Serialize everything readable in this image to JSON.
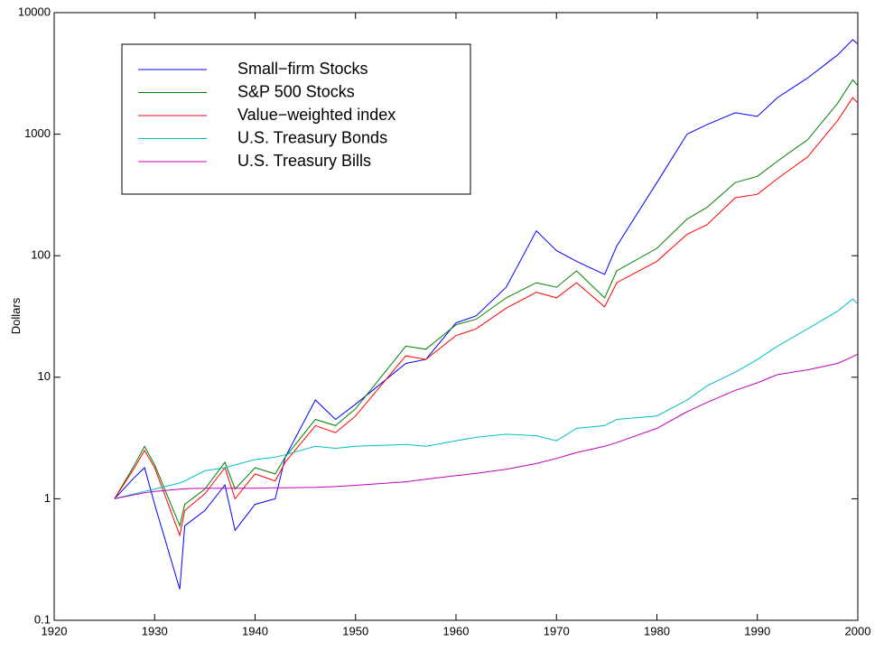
{
  "chart_data": {
    "type": "line",
    "ylabel": "Dollars",
    "yscale": "log",
    "x": [
      1926,
      1928,
      1929,
      1930,
      1932.5,
      1933,
      1935,
      1937,
      1938,
      1940,
      1942,
      1943,
      1946,
      1948,
      1950,
      1955,
      1957,
      1960,
      1962,
      1965,
      1968,
      1970,
      1972,
      1974.8,
      1976,
      1980,
      1983,
      1985,
      1987.8,
      1990,
      1992,
      1995,
      1998,
      1999.5,
      2000
    ],
    "series": [
      {
        "name": "Small−firm Stocks",
        "color": "#0000ff",
        "values": [
          1.0,
          1.5,
          1.8,
          0.9,
          0.18,
          0.6,
          0.8,
          1.3,
          0.55,
          0.9,
          1.0,
          2.2,
          6.5,
          4.5,
          6,
          13,
          14,
          28,
          32,
          55,
          160,
          110,
          90,
          70,
          120,
          400,
          1000,
          1200,
          1500,
          1400,
          2000,
          2900,
          4500,
          6000,
          5500
        ]
      },
      {
        "name": "S&P 500 Stocks",
        "color": "#008000",
        "values": [
          1.0,
          1.9,
          2.7,
          1.9,
          0.6,
          0.9,
          1.2,
          2.0,
          1.2,
          1.8,
          1.6,
          2.2,
          4.5,
          4.0,
          5.5,
          18,
          17,
          27,
          30,
          45,
          60,
          55,
          75,
          45,
          75,
          115,
          200,
          250,
          400,
          450,
          600,
          900,
          1800,
          2800,
          2500
        ]
      },
      {
        "name": "Value−weighted index",
        "color": "#ff0000",
        "values": [
          1.0,
          1.8,
          2.5,
          1.8,
          0.5,
          0.8,
          1.1,
          1.8,
          1.0,
          1.6,
          1.4,
          2.0,
          4.0,
          3.5,
          4.8,
          15,
          14,
          22,
          25,
          37,
          50,
          45,
          60,
          38,
          60,
          90,
          150,
          180,
          300,
          320,
          430,
          650,
          1300,
          2000,
          1800
        ]
      },
      {
        "name": "U.S. Treasury Bonds",
        "color": "#00bfbf",
        "values": [
          1.0,
          1.1,
          1.15,
          1.2,
          1.35,
          1.4,
          1.7,
          1.8,
          1.9,
          2.1,
          2.2,
          2.3,
          2.7,
          2.6,
          2.7,
          2.8,
          2.7,
          3.0,
          3.2,
          3.4,
          3.3,
          3.0,
          3.8,
          4.0,
          4.5,
          4.8,
          6.5,
          8.5,
          11,
          14,
          18,
          25,
          35,
          44,
          40
        ]
      },
      {
        "name": "U.S. Treasury Bills",
        "color": "#bf00bf",
        "values": [
          1.0,
          1.08,
          1.12,
          1.15,
          1.2,
          1.21,
          1.22,
          1.22,
          1.22,
          1.22,
          1.23,
          1.23,
          1.24,
          1.26,
          1.29,
          1.38,
          1.45,
          1.55,
          1.62,
          1.75,
          1.95,
          2.15,
          2.4,
          2.7,
          2.9,
          3.8,
          5.2,
          6.2,
          7.8,
          9.0,
          10.5,
          11.5,
          13,
          14.8,
          15.5
        ]
      }
    ],
    "xlim": [
      1920,
      2000
    ],
    "xticks": [
      1920,
      1930,
      1940,
      1950,
      1960,
      1970,
      1980,
      1990,
      2000
    ],
    "ylim": [
      0.1,
      10000
    ],
    "yticks": [
      0.1,
      1,
      10,
      100,
      1000,
      10000
    ],
    "legend": "upper left"
  }
}
